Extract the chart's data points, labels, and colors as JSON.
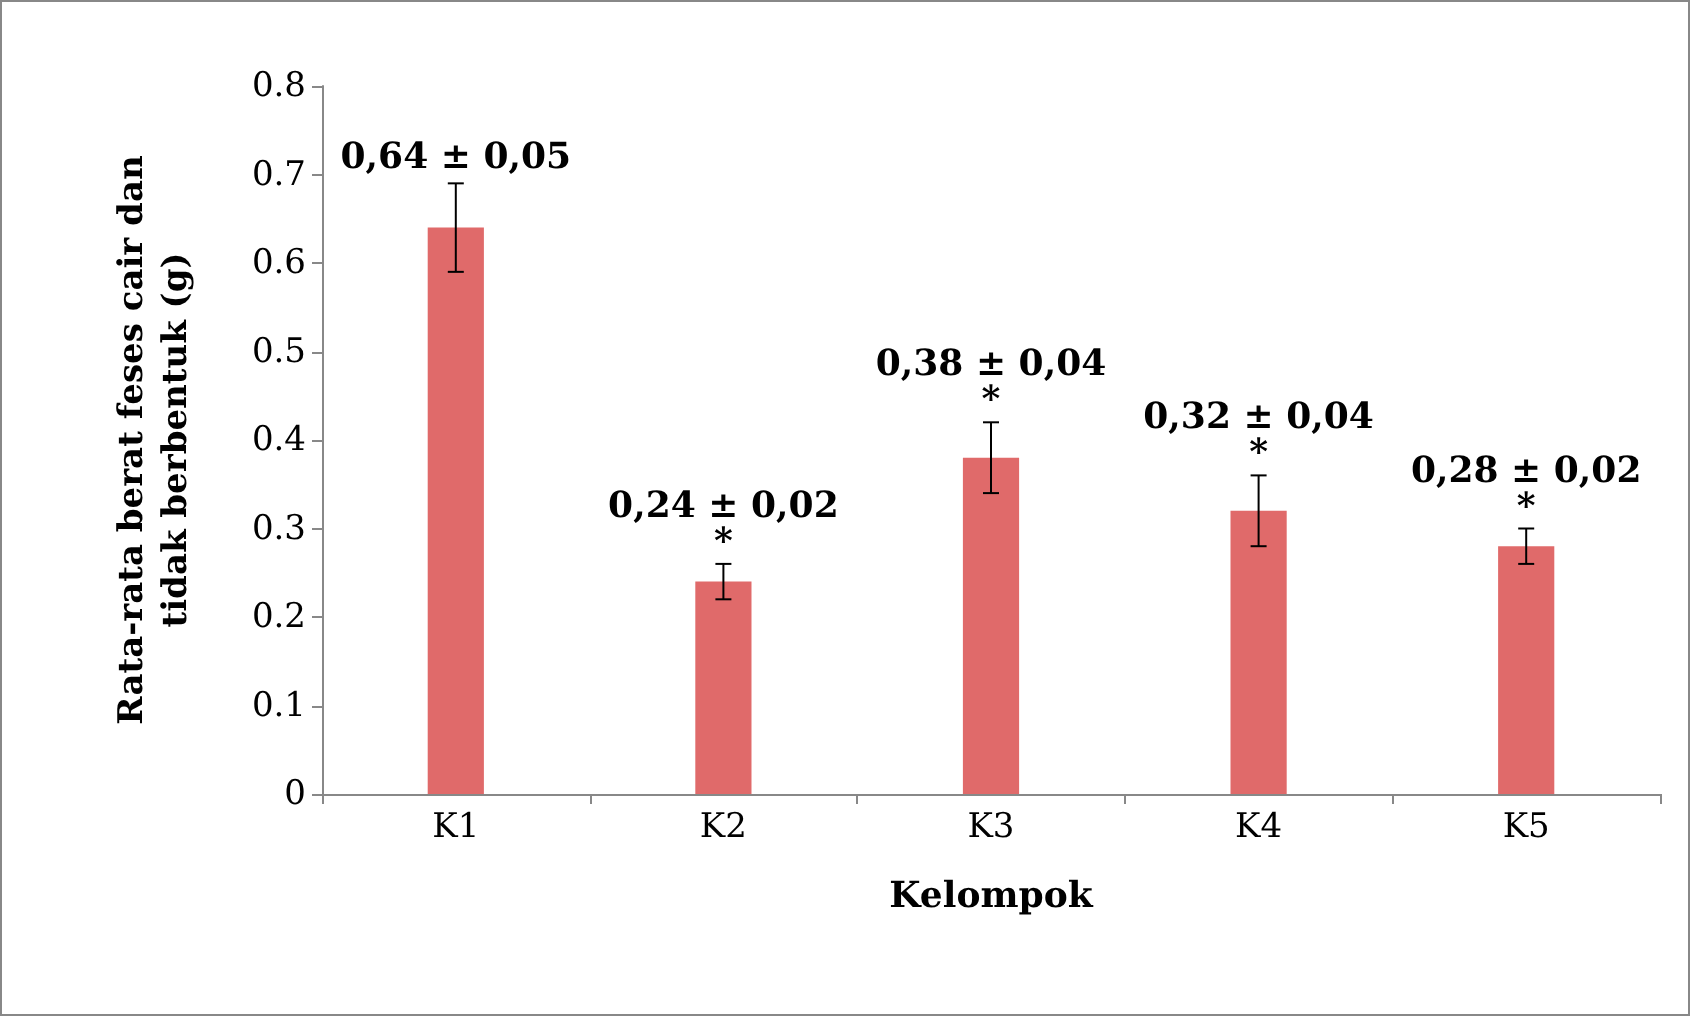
{
  "chart_data": {
    "type": "bar",
    "xlabel": "Kelompok",
    "ylabel": "Rata-rata berat feses cair dan tidak berbentuk (g)",
    "categories": [
      "K1",
      "K2",
      "K3",
      "K4",
      "K5"
    ],
    "values": [
      0.64,
      0.24,
      0.38,
      0.32,
      0.28
    ],
    "errors": [
      0.05,
      0.02,
      0.04,
      0.04,
      0.02
    ],
    "value_labels": [
      "0,64 ± 0,05",
      "0,24 ± 0,02",
      "0,38 ± 0,04",
      "0,32 ± 0,04",
      "0,28 ± 0,02"
    ],
    "color": "#e06a6a",
    "ylim": [
      0,
      0.8
    ],
    "yticks": [
      0,
      0.1,
      0.2,
      0.3,
      0.4,
      0.5,
      0.6,
      0.7,
      0.8
    ],
    "annotations": [
      {
        "text": "*",
        "x": "K2",
        "y": 0.26
      },
      {
        "text": "*",
        "x": "K3",
        "y": 0.42
      },
      {
        "text": "*",
        "x": "K4",
        "y": 0.36
      },
      {
        "text": "*",
        "x": "K5",
        "y": 0.3
      }
    ],
    "grid": false
  }
}
